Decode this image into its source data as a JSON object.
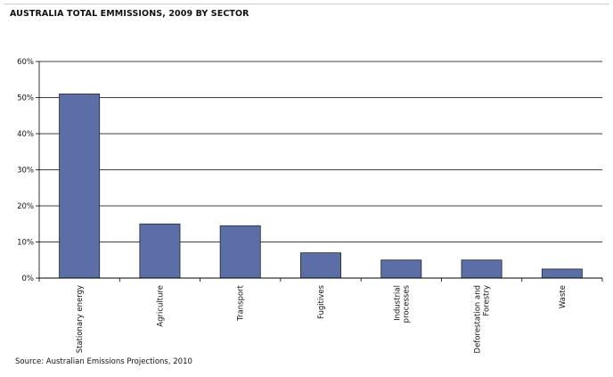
{
  "chart_data": {
    "type": "bar",
    "title": "AUSTRALIA TOTAL EMMISSIONS, 2009 BY SECTOR",
    "source": "Source: Australian Emissions Projections, 2010",
    "categories": [
      [
        "Stationary energy"
      ],
      [
        "Agriculture"
      ],
      [
        "Transport"
      ],
      [
        "Fugitives"
      ],
      [
        "Industrial",
        "processes"
      ],
      [
        "Deforestation and",
        "Forestry"
      ],
      [
        "Waste"
      ]
    ],
    "values": [
      51,
      15,
      14.5,
      7,
      5,
      5,
      2.5
    ],
    "unit": "%",
    "yticks": [
      "0%",
      "10%",
      "20%",
      "30%",
      "40%",
      "50%",
      "60%"
    ],
    "ylim": [
      0,
      60
    ],
    "xlabel": "",
    "ylabel": "",
    "grid": true,
    "bar_color": "#5b6ea6",
    "bar_edge_color": "#1f2633"
  }
}
